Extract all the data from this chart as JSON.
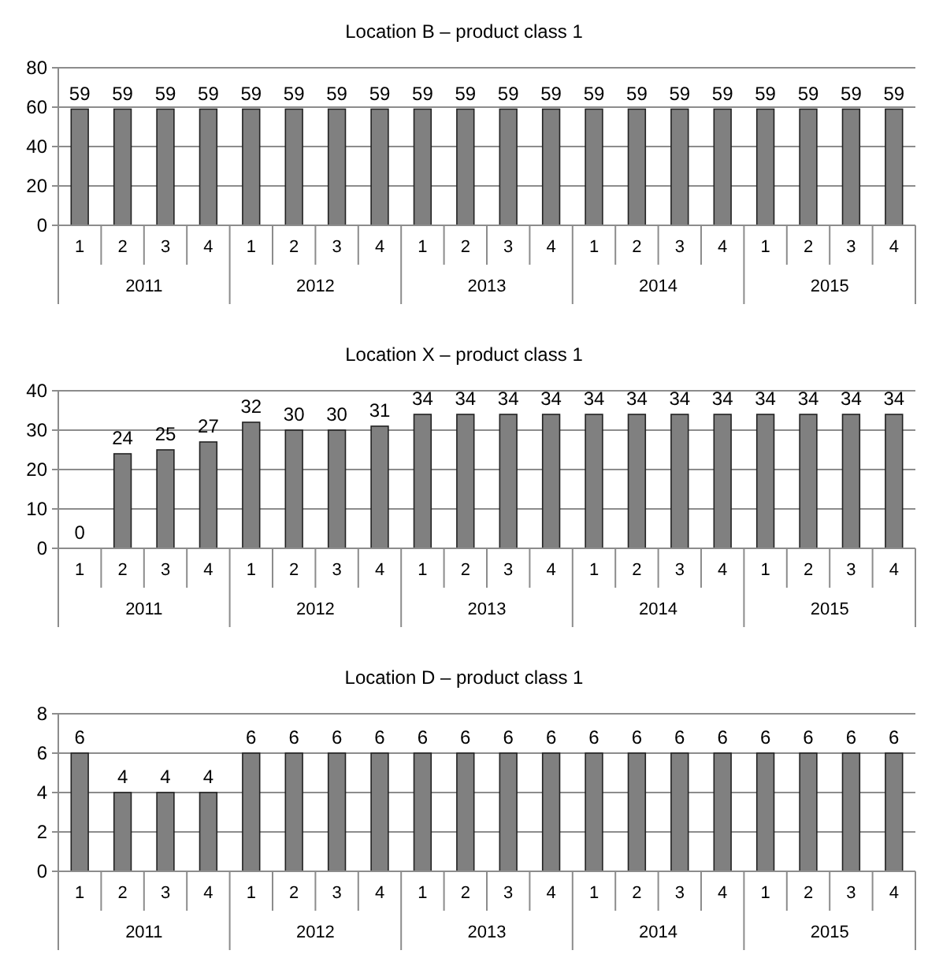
{
  "chart_data": [
    {
      "type": "bar",
      "title": "Location B – product class 1",
      "categories": [
        "1",
        "2",
        "3",
        "4",
        "1",
        "2",
        "3",
        "4",
        "1",
        "2",
        "3",
        "4",
        "1",
        "2",
        "3",
        "4",
        "1",
        "2",
        "3",
        "4"
      ],
      "values": [
        59,
        59,
        59,
        59,
        59,
        59,
        59,
        59,
        59,
        59,
        59,
        59,
        59,
        59,
        59,
        59,
        59,
        59,
        59,
        59
      ],
      "color": "#808080",
      "ylim": [
        0,
        80
      ],
      "yticks": [
        0,
        20,
        40,
        60,
        80
      ],
      "grid": "y",
      "data_labels": true,
      "annotations": [
        "2011",
        "2012",
        "2013",
        "2014",
        "2015"
      ]
    },
    {
      "type": "bar",
      "title": "Location X – product class 1",
      "categories": [
        "1",
        "2",
        "3",
        "4",
        "1",
        "2",
        "3",
        "4",
        "1",
        "2",
        "3",
        "4",
        "1",
        "2",
        "3",
        "4",
        "1",
        "2",
        "3",
        "4"
      ],
      "values": [
        0,
        24,
        25,
        27,
        32,
        30,
        30,
        31,
        34,
        34,
        34,
        34,
        34,
        34,
        34,
        34,
        34,
        34,
        34,
        34
      ],
      "color": "#808080",
      "ylim": [
        0,
        40
      ],
      "yticks": [
        0,
        10,
        20,
        30,
        40
      ],
      "grid": "y",
      "data_labels": true,
      "annotations": [
        "2011",
        "2012",
        "2013",
        "2014",
        "2015"
      ]
    },
    {
      "type": "bar",
      "title": "Location D – product class 1",
      "categories": [
        "1",
        "2",
        "3",
        "4",
        "1",
        "2",
        "3",
        "4",
        "1",
        "2",
        "3",
        "4",
        "1",
        "2",
        "3",
        "4",
        "1",
        "2",
        "3",
        "4"
      ],
      "values": [
        6,
        4,
        4,
        4,
        6,
        6,
        6,
        6,
        6,
        6,
        6,
        6,
        6,
        6,
        6,
        6,
        6,
        6,
        6,
        6
      ],
      "color": "#808080",
      "ylim": [
        0,
        8
      ],
      "yticks": [
        0,
        2,
        4,
        6,
        8
      ],
      "grid": "y",
      "data_labels": true,
      "annotations": [
        "2011",
        "2012",
        "2013",
        "2014",
        "2015"
      ]
    }
  ]
}
